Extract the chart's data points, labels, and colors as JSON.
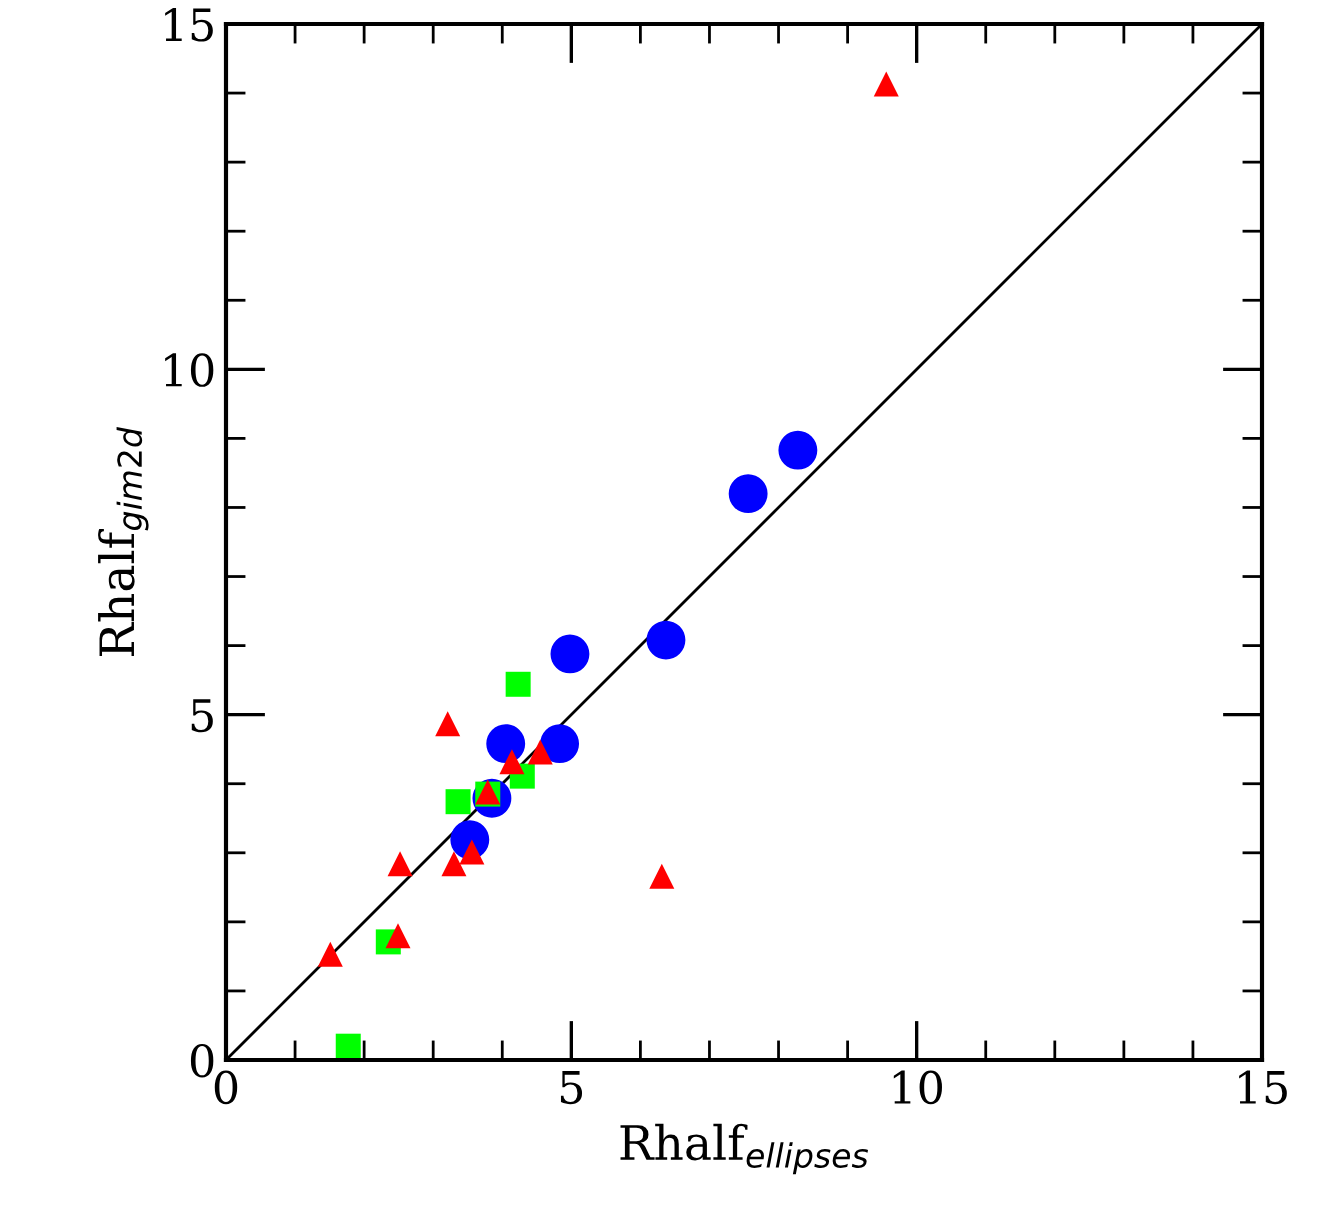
{
  "chart_data": {
    "type": "scatter",
    "xlabel": "Rhalf$_{ellipses}$",
    "ylabel": "Rhalf$_{gim2d}$",
    "xlim": [
      0,
      15
    ],
    "ylim": [
      0,
      15
    ],
    "xticks": [
      0,
      5,
      10,
      15
    ],
    "yticks": [
      0,
      5,
      10,
      15
    ],
    "grid": false,
    "legend": false,
    "series": [
      {
        "type": "line",
        "color": "#000000",
        "marker": "none",
        "line_style": "solid",
        "x": [
          0,
          15
        ],
        "values": [
          0,
          15
        ]
      },
      {
        "color": "#0000ff",
        "marker": "circle",
        "x": [
          3.53,
          3.85,
          4.05,
          4.83,
          4.98,
          6.37,
          7.56,
          8.28
        ],
        "values": [
          3.19,
          3.79,
          4.58,
          4.58,
          5.88,
          6.08,
          8.2,
          8.83
        ]
      },
      {
        "color": "#00ff00",
        "marker": "square",
        "x": [
          1.77,
          2.35,
          3.36,
          4.23,
          4.29,
          3.79
        ],
        "values": [
          0.2,
          1.71,
          3.74,
          5.44,
          4.11,
          3.85
        ]
      },
      {
        "color": "#ff0000",
        "marker": "triangle",
        "x": [
          1.51,
          2.49,
          2.52,
          3.3,
          3.21,
          3.56,
          3.79,
          4.14,
          4.55,
          6.31,
          9.56
        ],
        "values": [
          1.53,
          1.8,
          2.84,
          2.84,
          4.87,
          3.01,
          3.88,
          4.32,
          4.46,
          2.66,
          14.13
        ]
      }
    ]
  }
}
